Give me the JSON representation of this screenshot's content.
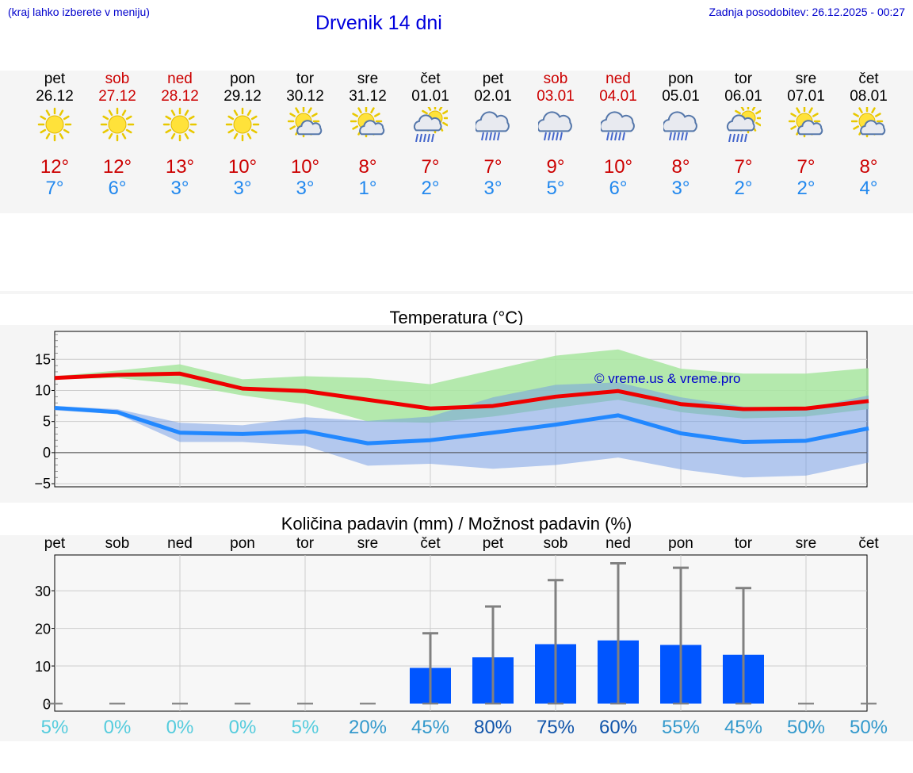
{
  "header": {
    "left_note": "(kraj lahko izberete v meniju)",
    "title": "Drvenik 14 dni",
    "updated": "Zadnja posodobitev: 26.12.2025 - 00:27"
  },
  "days": [
    {
      "name": "pet",
      "date": "26.12",
      "icon": "sun-icon",
      "max": "12°",
      "min": "7°",
      "weekend": false
    },
    {
      "name": "sob",
      "date": "27.12",
      "icon": "sun-icon",
      "max": "12°",
      "min": "6°",
      "weekend": true
    },
    {
      "name": "ned",
      "date": "28.12",
      "icon": "sun-icon",
      "max": "13°",
      "min": "3°",
      "weekend": true
    },
    {
      "name": "pon",
      "date": "29.12",
      "icon": "sun-icon",
      "max": "10°",
      "min": "3°",
      "weekend": false
    },
    {
      "name": "tor",
      "date": "30.12",
      "icon": "sun-cloud-icon",
      "max": "10°",
      "min": "3°",
      "weekend": false
    },
    {
      "name": "sre",
      "date": "31.12",
      "icon": "sun-cloud-icon",
      "max": "8°",
      "min": "1°",
      "weekend": false
    },
    {
      "name": "čet",
      "date": "01.01",
      "icon": "sun-rain-icon",
      "max": "7°",
      "min": "2°",
      "weekend": false
    },
    {
      "name": "pet",
      "date": "02.01",
      "icon": "cloud-rain-icon",
      "max": "7°",
      "min": "3°",
      "weekend": false
    },
    {
      "name": "sob",
      "date": "03.01",
      "icon": "cloud-rain-icon",
      "max": "9°",
      "min": "5°",
      "weekend": true
    },
    {
      "name": "ned",
      "date": "04.01",
      "icon": "cloud-rain-icon",
      "max": "10°",
      "min": "6°",
      "weekend": true
    },
    {
      "name": "pon",
      "date": "05.01",
      "icon": "cloud-rain-icon",
      "max": "8°",
      "min": "3°",
      "weekend": false
    },
    {
      "name": "tor",
      "date": "06.01",
      "icon": "sun-rain-icon",
      "max": "7°",
      "min": "2°",
      "weekend": false
    },
    {
      "name": "sre",
      "date": "07.01",
      "icon": "sun-cloud-icon",
      "max": "7°",
      "min": "2°",
      "weekend": false
    },
    {
      "name": "čet",
      "date": "08.01",
      "icon": "sun-cloud-icon",
      "max": "8°",
      "min": "4°",
      "weekend": false
    }
  ],
  "colors": {
    "max": "#ee0000",
    "min": "#2288ff",
    "max_band": "#a8e6a0",
    "min_band": "#a8c0f0",
    "bar": "#0055ff",
    "whisker": "#808080",
    "pct_light": "#55ccdd",
    "pct_mid": "#3399cc",
    "pct_dark": "#1155aa"
  },
  "chart_data": [
    {
      "type": "line",
      "title": "Temperatura (°C)",
      "watermark": "© vreme.us & vreme.pro",
      "ylim": [
        -5.5,
        19.5
      ],
      "yticks": [
        "−5",
        "0",
        "5",
        "10",
        "15"
      ],
      "ytick_values": [
        -5,
        0,
        5,
        10,
        15
      ],
      "x": [
        0,
        1,
        2,
        3,
        4,
        5,
        6,
        7,
        8,
        9,
        10,
        11,
        12,
        13
      ],
      "series": [
        {
          "name": "max",
          "values": [
            12.0,
            12.5,
            12.7,
            10.3,
            9.9,
            8.5,
            7.1,
            7.5,
            9.0,
            9.9,
            7.8,
            7.0,
            7.1,
            8.3
          ]
        },
        {
          "name": "min",
          "values": [
            7.2,
            6.5,
            3.2,
            3.0,
            3.4,
            1.5,
            2.0,
            3.2,
            4.5,
            6.0,
            3.1,
            1.7,
            1.9,
            3.9
          ]
        }
      ],
      "bands": [
        {
          "name": "max_range",
          "lo": [
            11.8,
            12.0,
            11.0,
            9.2,
            7.8,
            5.0,
            4.8,
            5.8,
            7.2,
            8.5,
            6.5,
            5.5,
            5.8,
            7.0
          ],
          "hi": [
            12.3,
            13.2,
            14.2,
            11.8,
            12.3,
            12.0,
            11.0,
            13.3,
            15.6,
            16.6,
            13.5,
            12.7,
            12.7,
            13.6
          ]
        },
        {
          "name": "min_range",
          "lo": [
            6.8,
            6.2,
            1.7,
            1.7,
            1.1,
            -2.1,
            -1.8,
            -2.6,
            -2.0,
            -0.8,
            -2.7,
            -4.0,
            -3.7,
            -1.6
          ],
          "hi": [
            7.5,
            7.0,
            4.8,
            4.4,
            5.7,
            5.1,
            5.8,
            8.9,
            10.9,
            11.3,
            8.9,
            7.4,
            7.1,
            9.2
          ]
        }
      ]
    },
    {
      "type": "bar",
      "title": "Količina padavin (mm) / Možnost padavin (%)",
      "categories": [
        "pet",
        "sob",
        "ned",
        "pon",
        "tor",
        "sre",
        "čet",
        "pet",
        "sob",
        "ned",
        "pon",
        "tor",
        "sre",
        "čet"
      ],
      "ylim": [
        -2,
        39.5
      ],
      "yticks": [
        "0",
        "10",
        "20",
        "30"
      ],
      "ytick_values": [
        0,
        10,
        20,
        30
      ],
      "values": [
        0,
        0,
        0,
        0,
        0,
        0,
        9.5,
        12.3,
        15.8,
        16.8,
        15.6,
        13.0,
        0,
        0
      ],
      "err_low": [
        0,
        0,
        0,
        0,
        0,
        0,
        0,
        0,
        0,
        0,
        0,
        0,
        0,
        0
      ],
      "err_high": [
        0,
        0,
        0,
        0,
        0,
        0,
        18.7,
        25.8,
        32.8,
        37.3,
        36.1,
        30.7,
        0,
        0
      ],
      "probability": [
        "5%",
        "0%",
        "0%",
        "0%",
        "5%",
        "20%",
        "45%",
        "80%",
        "75%",
        "60%",
        "55%",
        "45%",
        "50%",
        "50%"
      ]
    }
  ]
}
